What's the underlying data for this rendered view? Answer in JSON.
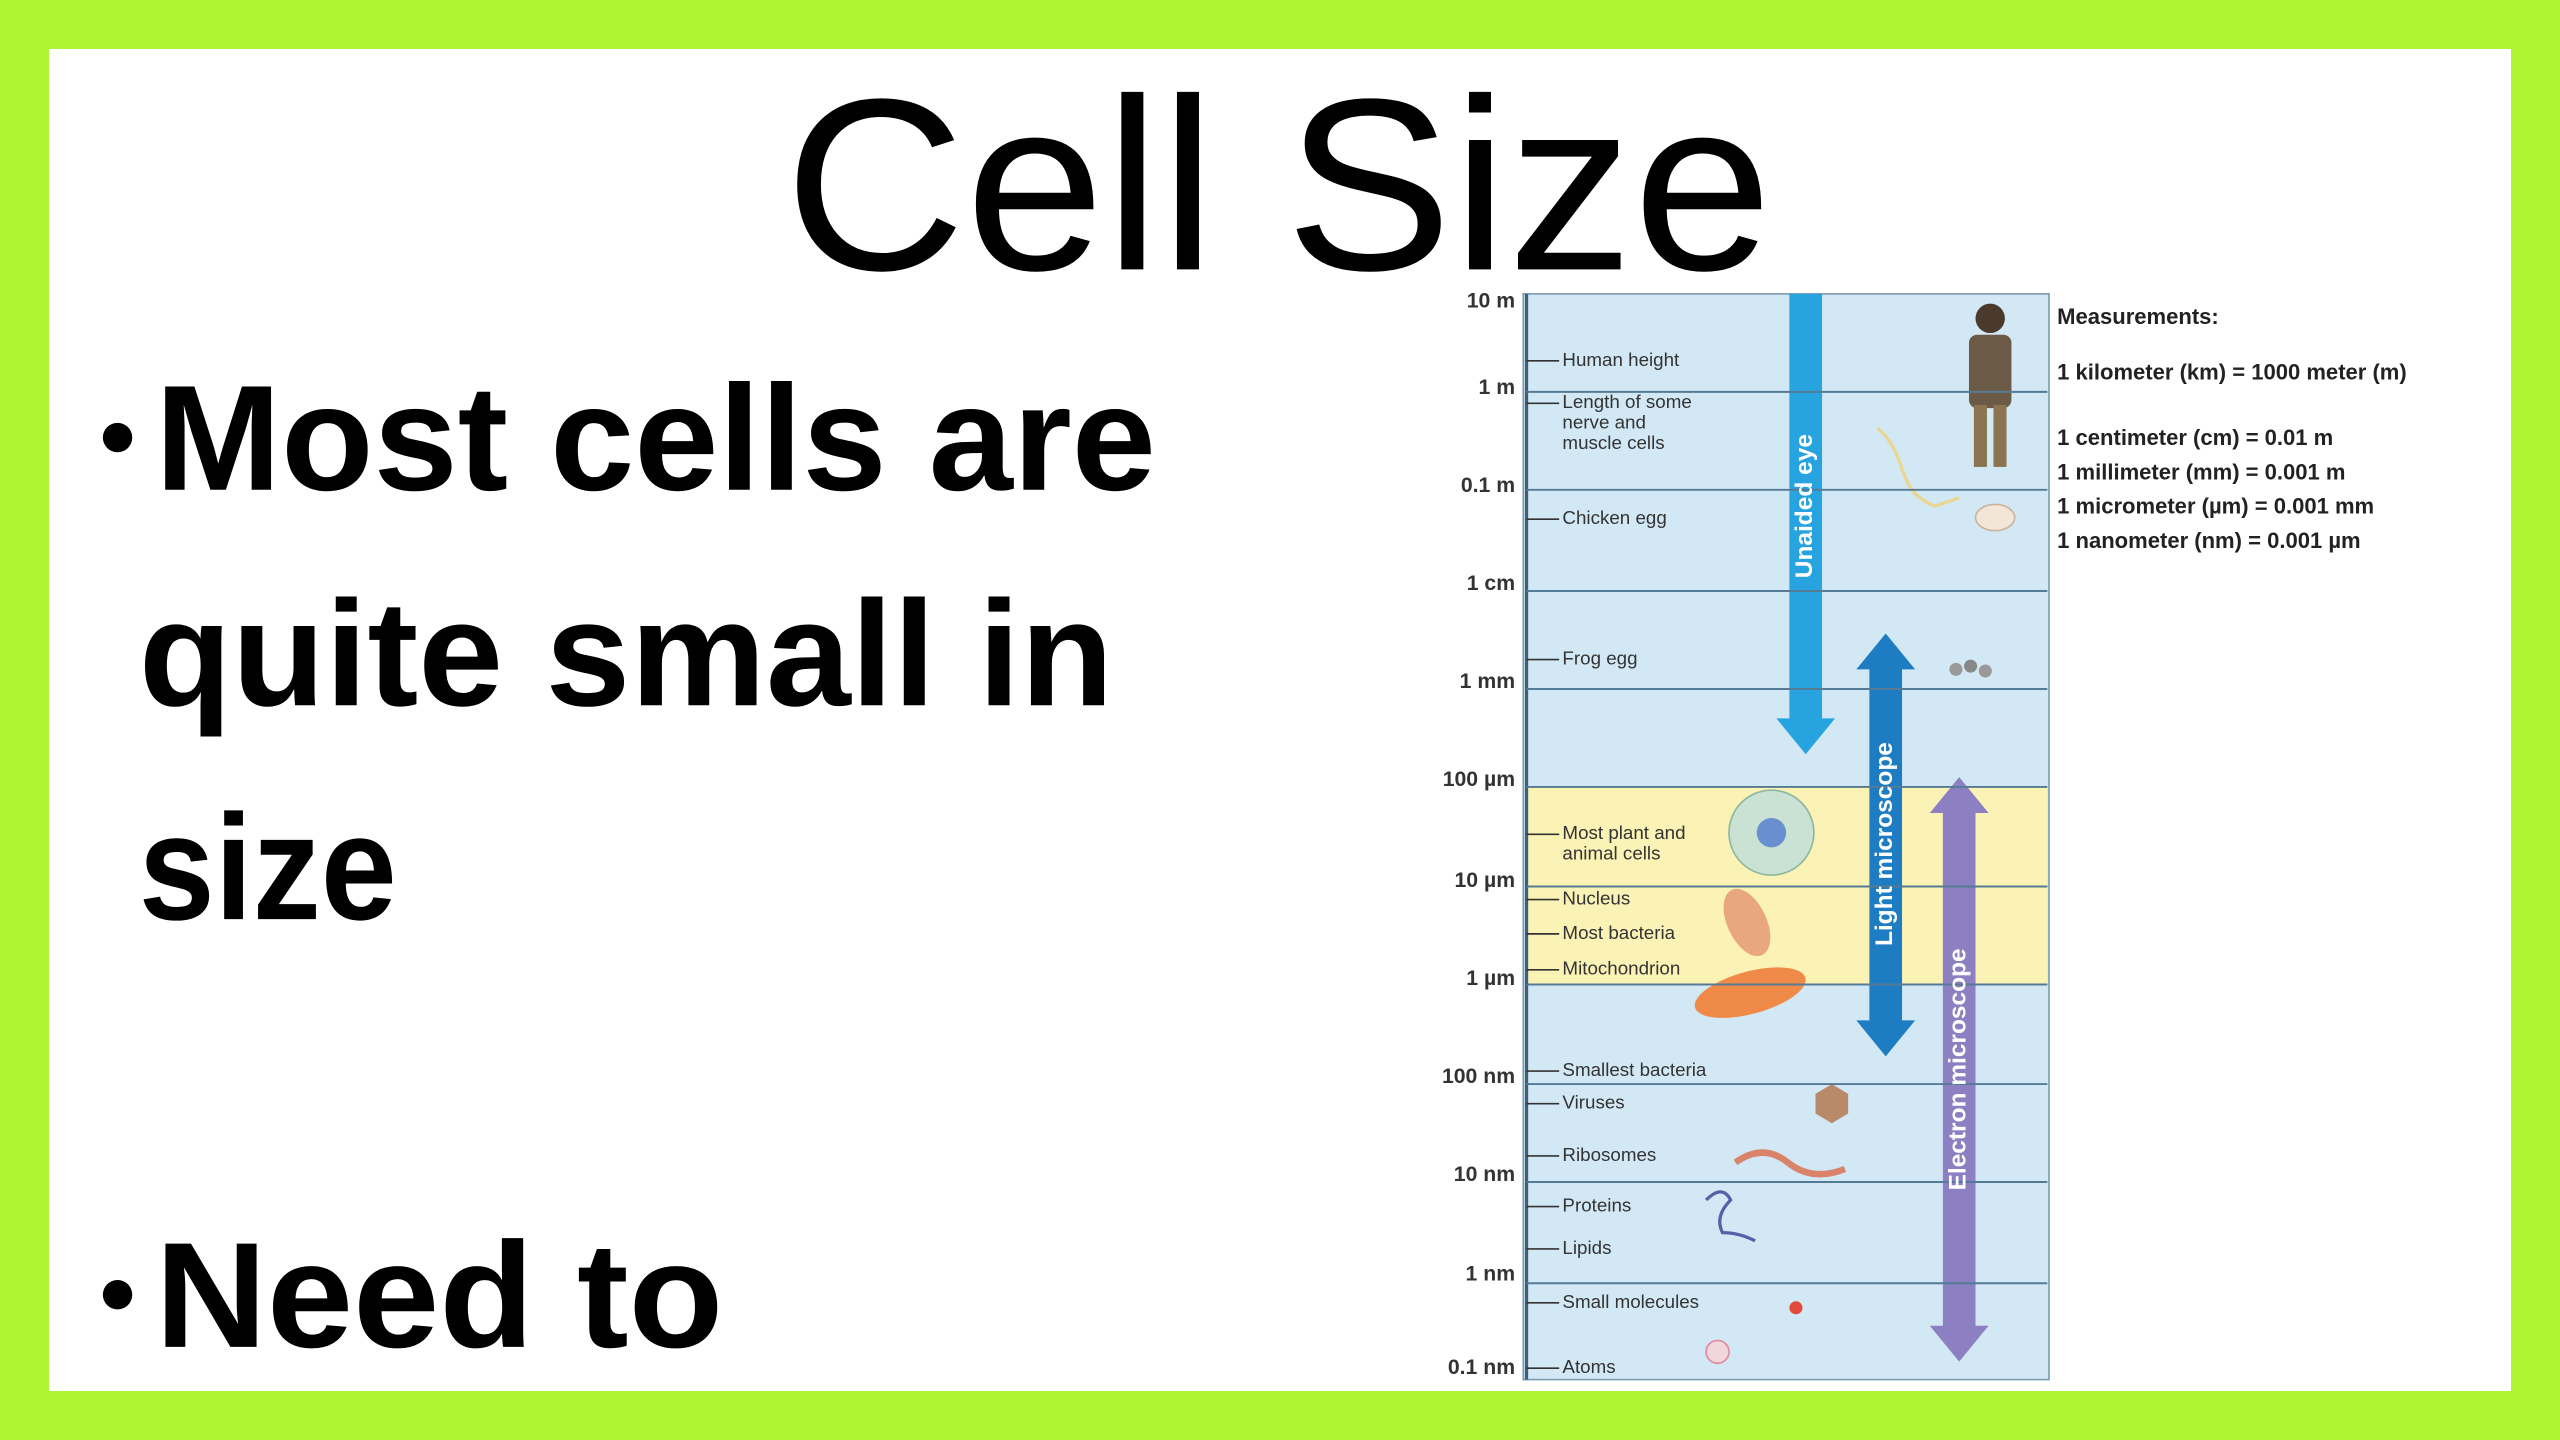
{
  "header": {
    "title": "Cell Size"
  },
  "bullets": [
    {
      "lines": [
        "Most cells are",
        "quite small in",
        "size"
      ]
    },
    {
      "lines": [
        "Need to"
      ]
    }
  ],
  "diagram": {
    "scale": [
      "10 m",
      "1 m",
      "0.1 m",
      "1 cm",
      "1 mm",
      "100 µm",
      "10 µm",
      "1 µm",
      "100 nm",
      "10 nm",
      "1 nm",
      "0.1 nm"
    ],
    "items": [
      {
        "lines": [
          "Human height"
        ]
      },
      {
        "lines": [
          "Length of some",
          "nerve and",
          "muscle cells"
        ]
      },
      {
        "lines": [
          "Chicken egg"
        ]
      },
      {
        "lines": [
          "Frog egg"
        ]
      },
      {
        "lines": [
          "Most plant and",
          "animal cells"
        ]
      },
      {
        "lines": [
          "Nucleus"
        ]
      },
      {
        "lines": [
          "Most bacteria"
        ]
      },
      {
        "lines": [
          "Mitochondrion"
        ]
      },
      {
        "lines": [
          "Smallest bacteria"
        ]
      },
      {
        "lines": [
          "Viruses"
        ]
      },
      {
        "lines": [
          "Ribosomes"
        ]
      },
      {
        "lines": [
          "Proteins"
        ]
      },
      {
        "lines": [
          "Lipids"
        ]
      },
      {
        "lines": [
          "Small molecules"
        ]
      },
      {
        "lines": [
          "Atoms"
        ]
      }
    ],
    "arrows": [
      "Unaided eye",
      "Light microscope",
      "Electron microscope"
    ],
    "measurements": {
      "title": "Measurements:",
      "lines": [
        "1 kilometer (km) = 1000 meter (m)",
        "1 centimeter (cm) = 0.01 m",
        "1 millimeter (mm) = 0.001 m",
        "1 micrometer (µm) = 0.001 mm",
        "1 nanometer (nm) = 0.001 µm"
      ]
    }
  }
}
